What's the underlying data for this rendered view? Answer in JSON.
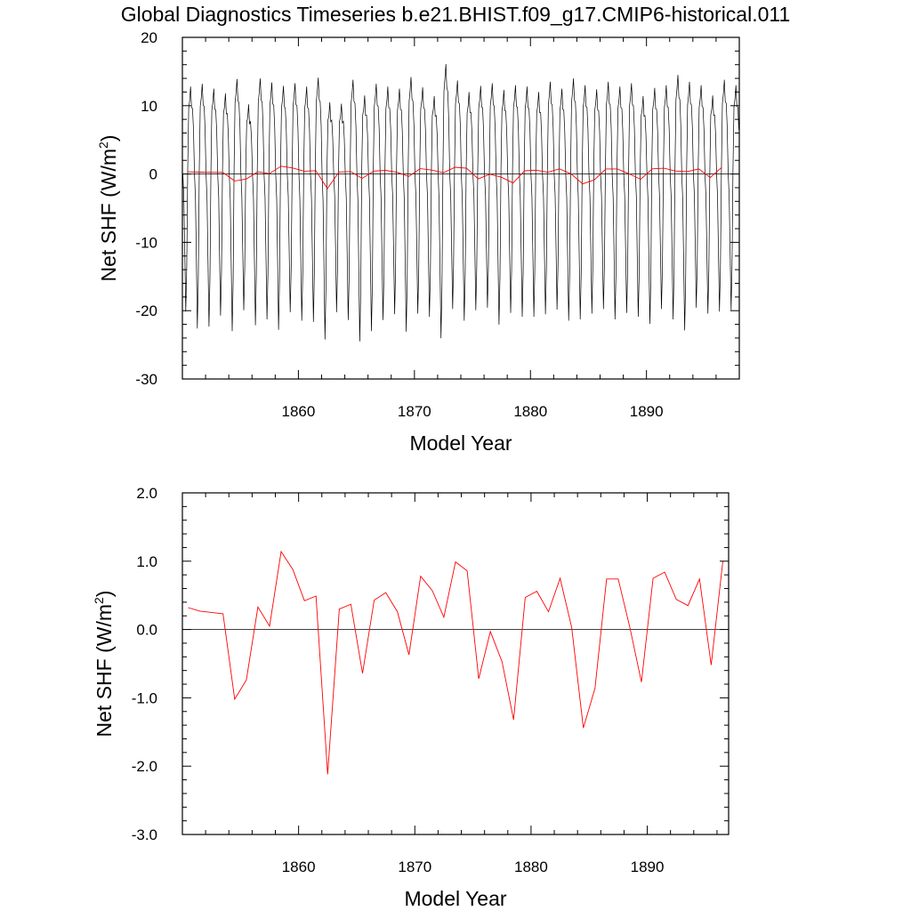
{
  "title": "Global Diagnostics Timeseries b.e21.BHIST.f09_g17.CMIP6-historical.011",
  "chart_data": [
    {
      "type": "line",
      "xlabel": "Model Year",
      "ylabel_main": "Net SHF (W/m",
      "ylabel_sup": "2",
      "ylabel_close": ")",
      "xlim": [
        1850,
        1898
      ],
      "ylim": [
        -30,
        20
      ],
      "x_ticks": [
        1860,
        1870,
        1880,
        1890
      ],
      "x_tick_labels": [
        "1860",
        "1870",
        "1880",
        "1890"
      ],
      "y_ticks": [
        20,
        10,
        0,
        -10,
        -20,
        -30
      ],
      "y_tick_labels": [
        "20",
        "10",
        "0",
        "-10",
        "-20",
        "-30"
      ],
      "zero_line": true,
      "monthly_series": {
        "color": "#000000",
        "start_year": 1850,
        "months_per_year": 12,
        "annual_max": [
          12.8,
          13.2,
          12.5,
          11.8,
          13.9,
          10.2,
          14.0,
          13.4,
          12.9,
          13.3,
          12.8,
          14.1,
          10.5,
          10.3,
          13.8,
          11.5,
          13.2,
          12.8,
          12.5,
          14.2,
          12.7,
          11.4,
          16.1,
          13.7,
          12.0,
          12.9,
          13.3,
          12.3,
          13.0,
          12.8,
          12.0,
          13.5,
          12.5,
          14.0,
          13.0,
          12.4,
          13.5,
          12.8,
          13.3,
          11.4,
          12.6,
          13.0,
          14.5,
          13.5,
          13.0,
          11.5,
          13.8,
          13.0
        ],
        "annual_min": [
          -21.2,
          -23.8,
          -23.5,
          -21.8,
          -24.2,
          -21.0,
          -23.3,
          -22.4,
          -24.0,
          -21.3,
          -22.6,
          -22.8,
          -25.5,
          -21.3,
          -22.5,
          -25.8,
          -24.2,
          -22.5,
          -21.6,
          -24.3,
          -21.5,
          -22.0,
          -25.3,
          -20.8,
          -22.6,
          -21.0,
          -20.6,
          -23.2,
          -21.4,
          -22.0,
          -22.0,
          -21.6,
          -20.9,
          -22.6,
          -22.4,
          -21.5,
          -20.8,
          -22.4,
          -21.4,
          -22.0,
          -23.1,
          -20.8,
          -22.4,
          -24.1,
          -20.6,
          -21.5,
          -21.2,
          -21.0
        ]
      },
      "annual_series": {
        "color": "#ff0000",
        "x": [
          1850.5,
          1851.5,
          1852.5,
          1853.5,
          1854.5,
          1855.5,
          1856.5,
          1857.5,
          1858.5,
          1859.5,
          1860.5,
          1861.5,
          1862.5,
          1863.5,
          1864.5,
          1865.5,
          1866.5,
          1867.5,
          1868.5,
          1869.5,
          1870.5,
          1871.5,
          1872.5,
          1873.5,
          1874.5,
          1875.5,
          1876.5,
          1877.5,
          1878.5,
          1879.5,
          1880.5,
          1881.5,
          1882.5,
          1883.5,
          1884.5,
          1885.5,
          1886.5,
          1887.5,
          1888.5,
          1889.5,
          1890.5,
          1891.5,
          1892.5,
          1893.5,
          1894.5,
          1895.5,
          1896.5
        ],
        "y": [
          0.32,
          0.27,
          0.25,
          0.23,
          -1.02,
          -0.74,
          0.33,
          0.05,
          1.14,
          0.88,
          0.42,
          0.49,
          -2.12,
          0.3,
          0.37,
          -0.64,
          0.43,
          0.54,
          0.26,
          -0.37,
          0.78,
          0.57,
          0.18,
          0.99,
          0.86,
          -0.72,
          -0.03,
          -0.47,
          -1.32,
          0.47,
          0.56,
          0.26,
          0.75,
          0.03,
          -1.44,
          -0.86,
          0.74,
          0.74,
          0.03,
          -0.77,
          0.75,
          0.84,
          0.44,
          0.35,
          0.74,
          -0.52,
          1.0
        ]
      }
    },
    {
      "type": "line",
      "xlabel": "Model Year",
      "ylabel_main": "Net SHF (W/m",
      "ylabel_sup": "2",
      "ylabel_close": ")",
      "xlim": [
        1850,
        1897
      ],
      "ylim": [
        -3.0,
        2.0
      ],
      "x_ticks": [
        1860,
        1870,
        1880,
        1890
      ],
      "x_tick_labels": [
        "1860",
        "1870",
        "1880",
        "1890"
      ],
      "y_ticks": [
        2.0,
        1.0,
        0.0,
        -1.0,
        -2.0,
        -3.0
      ],
      "y_tick_labels": [
        "2.0",
        "1.0",
        "0.0",
        "-1.0",
        "-2.0",
        "-3.0"
      ],
      "zero_line": true,
      "annual_series": {
        "color": "#ff0000",
        "x": [
          1850.5,
          1851.5,
          1852.5,
          1853.5,
          1854.5,
          1855.5,
          1856.5,
          1857.5,
          1858.5,
          1859.5,
          1860.5,
          1861.5,
          1862.5,
          1863.5,
          1864.5,
          1865.5,
          1866.5,
          1867.5,
          1868.5,
          1869.5,
          1870.5,
          1871.5,
          1872.5,
          1873.5,
          1874.5,
          1875.5,
          1876.5,
          1877.5,
          1878.5,
          1879.5,
          1880.5,
          1881.5,
          1882.5,
          1883.5,
          1884.5,
          1885.5,
          1886.5,
          1887.5,
          1888.5,
          1889.5,
          1890.5,
          1891.5,
          1892.5,
          1893.5,
          1894.5,
          1895.5,
          1896.5
        ],
        "y": [
          0.32,
          0.27,
          0.25,
          0.23,
          -1.02,
          -0.74,
          0.33,
          0.05,
          1.14,
          0.88,
          0.42,
          0.49,
          -2.12,
          0.3,
          0.37,
          -0.64,
          0.43,
          0.54,
          0.26,
          -0.37,
          0.78,
          0.57,
          0.18,
          0.99,
          0.86,
          -0.72,
          -0.03,
          -0.47,
          -1.32,
          0.47,
          0.56,
          0.26,
          0.75,
          0.03,
          -1.44,
          -0.86,
          0.74,
          0.74,
          0.03,
          -0.77,
          0.75,
          0.84,
          0.44,
          0.35,
          0.74,
          -0.52,
          1.0
        ]
      }
    }
  ]
}
